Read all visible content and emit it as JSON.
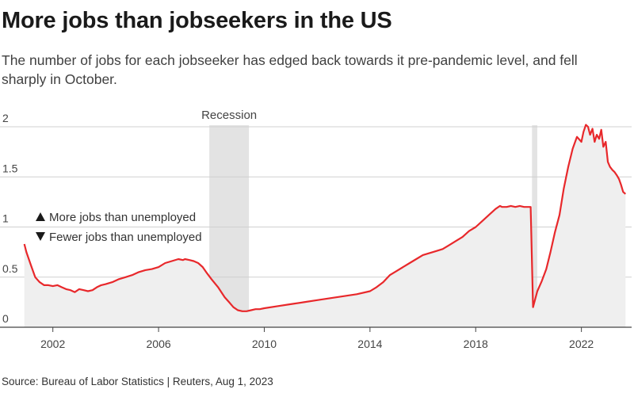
{
  "title": "More jobs than jobseekers in the US",
  "subtitle": "The number of jobs for each jobseeker has edged back towards it pre-pandemic level, and fell sharply in October.",
  "source": "Source: Bureau of Labor Statistics | Reuters, Aug 1, 2023",
  "colors": {
    "line": "#e8282b",
    "area": "#efefef",
    "recession": "#e3e3e3",
    "grid": "#d0d0d0",
    "axis": "#444444"
  },
  "legend": {
    "up_label": "More jobs than unemployed",
    "down_label": "Fewer jobs than unemployed",
    "up_icon": "triangle-up-icon",
    "down_icon": "triangle-down-icon"
  },
  "chart_data": {
    "type": "area",
    "series_label": "",
    "xlim": [
      2000.0,
      2023.9
    ],
    "ylim": [
      0,
      2
    ],
    "yticks": [
      0,
      0.5,
      1,
      1.5,
      2
    ],
    "ytick_labels": [
      "0",
      "0.5",
      "1",
      "1.5",
      "2"
    ],
    "xticks": [
      2002,
      2006,
      2010,
      2014,
      2018,
      2022
    ],
    "xtick_labels": [
      "2002",
      "2006",
      "2010",
      "2014",
      "2018",
      "2022"
    ],
    "grid": true,
    "annotations": [
      {
        "label": "Recession",
        "x_start": 2007.92,
        "x_end": 2009.42
      },
      {
        "label": "",
        "x_start": 2020.13,
        "x_end": 2020.33
      }
    ],
    "x": [
      2000.92,
      2001.0,
      2001.17,
      2001.33,
      2001.5,
      2001.67,
      2001.83,
      2002.0,
      2002.17,
      2002.33,
      2002.5,
      2002.67,
      2002.83,
      2003.0,
      2003.17,
      2003.33,
      2003.5,
      2003.67,
      2003.83,
      2004.0,
      2004.25,
      2004.5,
      2004.75,
      2005.0,
      2005.25,
      2005.5,
      2005.75,
      2006.0,
      2006.25,
      2006.5,
      2006.75,
      2006.92,
      2007.0,
      2007.17,
      2007.33,
      2007.5,
      2007.67,
      2007.83,
      2008.0,
      2008.25,
      2008.5,
      2008.67,
      2008.83,
      2009.0,
      2009.17,
      2009.33,
      2009.5,
      2009.67,
      2009.83,
      2010.0,
      2010.5,
      2011.0,
      2011.5,
      2012.0,
      2012.5,
      2013.0,
      2013.5,
      2014.0,
      2014.25,
      2014.5,
      2014.75,
      2015.0,
      2015.25,
      2015.5,
      2015.75,
      2016.0,
      2016.25,
      2016.5,
      2016.75,
      2017.0,
      2017.25,
      2017.5,
      2017.75,
      2018.0,
      2018.25,
      2018.5,
      2018.75,
      2018.92,
      2019.0,
      2019.17,
      2019.33,
      2019.5,
      2019.67,
      2019.83,
      2020.0,
      2020.08,
      2020.17,
      2020.25,
      2020.33,
      2020.5,
      2020.67,
      2020.83,
      2021.0,
      2021.17,
      2021.33,
      2021.5,
      2021.67,
      2021.83,
      2022.0,
      2022.08,
      2022.17,
      2022.25,
      2022.33,
      2022.42,
      2022.5,
      2022.58,
      2022.67,
      2022.75,
      2022.83,
      2022.92,
      2023.0,
      2023.08,
      2023.17,
      2023.25,
      2023.33,
      2023.42,
      2023.5,
      2023.58,
      2023.67
    ],
    "y": [
      0.83,
      0.75,
      0.62,
      0.5,
      0.45,
      0.42,
      0.42,
      0.41,
      0.42,
      0.4,
      0.38,
      0.37,
      0.35,
      0.38,
      0.37,
      0.36,
      0.37,
      0.4,
      0.42,
      0.43,
      0.45,
      0.48,
      0.5,
      0.52,
      0.55,
      0.57,
      0.58,
      0.6,
      0.64,
      0.66,
      0.68,
      0.67,
      0.68,
      0.67,
      0.66,
      0.64,
      0.6,
      0.54,
      0.48,
      0.4,
      0.3,
      0.25,
      0.2,
      0.17,
      0.16,
      0.16,
      0.17,
      0.18,
      0.18,
      0.19,
      0.21,
      0.23,
      0.25,
      0.27,
      0.29,
      0.31,
      0.33,
      0.36,
      0.4,
      0.45,
      0.52,
      0.56,
      0.6,
      0.64,
      0.68,
      0.72,
      0.74,
      0.76,
      0.78,
      0.82,
      0.86,
      0.9,
      0.96,
      1.0,
      1.06,
      1.12,
      1.18,
      1.21,
      1.2,
      1.2,
      1.21,
      1.2,
      1.21,
      1.2,
      1.2,
      1.2,
      0.2,
      0.28,
      0.36,
      0.46,
      0.58,
      0.75,
      0.95,
      1.12,
      1.38,
      1.6,
      1.78,
      1.9,
      1.85,
      1.95,
      2.02,
      2.0,
      1.92,
      1.98,
      1.85,
      1.92,
      1.88,
      1.97,
      1.8,
      1.85,
      1.65,
      1.6,
      1.57,
      1.55,
      1.52,
      1.48,
      1.42,
      1.35,
      1.33
    ]
  }
}
